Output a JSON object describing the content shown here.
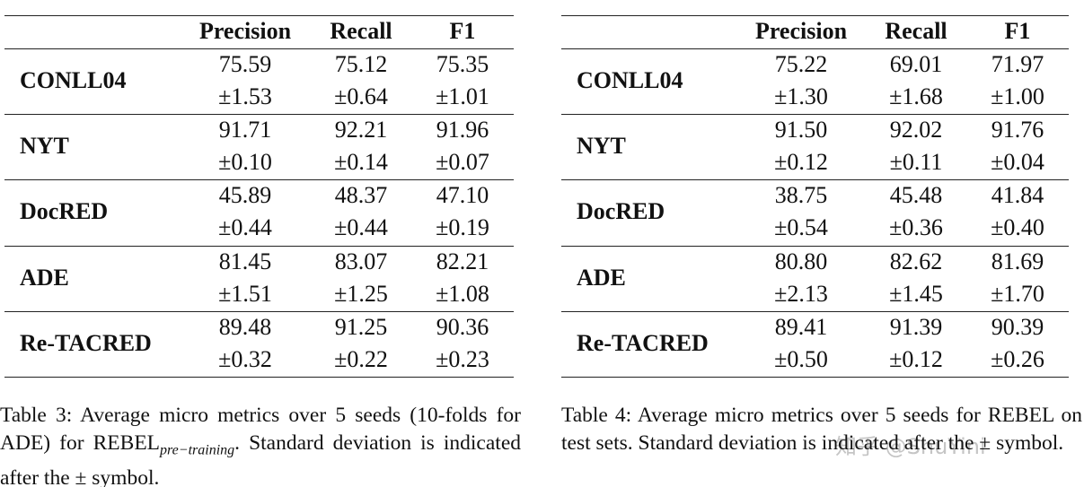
{
  "tables": [
    {
      "header": [
        "Precision",
        "Recall",
        "F1"
      ],
      "rows": [
        {
          "name": "CONLL04",
          "means": [
            "75.59",
            "75.12",
            "75.35"
          ],
          "stds": [
            "±1.53",
            "±0.64",
            "±1.01"
          ]
        },
        {
          "name": "NYT",
          "means": [
            "91.71",
            "92.21",
            "91.96"
          ],
          "stds": [
            "±0.10",
            "±0.14",
            "±0.07"
          ]
        },
        {
          "name": "DocRED",
          "means": [
            "45.89",
            "48.37",
            "47.10"
          ],
          "stds": [
            "±0.44",
            "±0.44",
            "±0.19"
          ]
        },
        {
          "name": "ADE",
          "means": [
            "81.45",
            "83.07",
            "82.21"
          ],
          "stds": [
            "±1.51",
            "±1.25",
            "±1.08"
          ]
        },
        {
          "name": "Re-TACRED",
          "means": [
            "89.48",
            "91.25",
            "90.36"
          ],
          "stds": [
            "±0.32",
            "±0.22",
            "±0.23"
          ]
        }
      ],
      "caption": {
        "before": "Table 3: Average micro metrics over 5 seeds (10-folds for ADE) for REBEL",
        "subscript": "pre−training",
        "after": ". Standard deviation is indicated after the ± symbol."
      }
    },
    {
      "header": [
        "Precision",
        "Recall",
        "F1"
      ],
      "rows": [
        {
          "name": "CONLL04",
          "means": [
            "75.22",
            "69.01",
            "71.97"
          ],
          "stds": [
            "±1.30",
            "±1.68",
            "±1.00"
          ]
        },
        {
          "name": "NYT",
          "means": [
            "91.50",
            "92.02",
            "91.76"
          ],
          "stds": [
            "±0.12",
            "±0.11",
            "±0.04"
          ]
        },
        {
          "name": "DocRED",
          "means": [
            "38.75",
            "45.48",
            "41.84"
          ],
          "stds": [
            "±0.54",
            "±0.36",
            "±0.40"
          ]
        },
        {
          "name": "ADE",
          "means": [
            "80.80",
            "82.62",
            "81.69"
          ],
          "stds": [
            "±2.13",
            "±1.45",
            "±1.70"
          ]
        },
        {
          "name": "Re-TACRED",
          "means": [
            "89.41",
            "91.39",
            "90.39"
          ],
          "stds": [
            "±0.50",
            "±0.12",
            "±0.26"
          ]
        }
      ],
      "caption": {
        "before": "Table 4: Average micro metrics over 5 seeds for REBEL on test sets. Standard deviation is indicated after the ± symbol."
      }
    }
  ],
  "watermark": "知乎 @ShuYini"
}
